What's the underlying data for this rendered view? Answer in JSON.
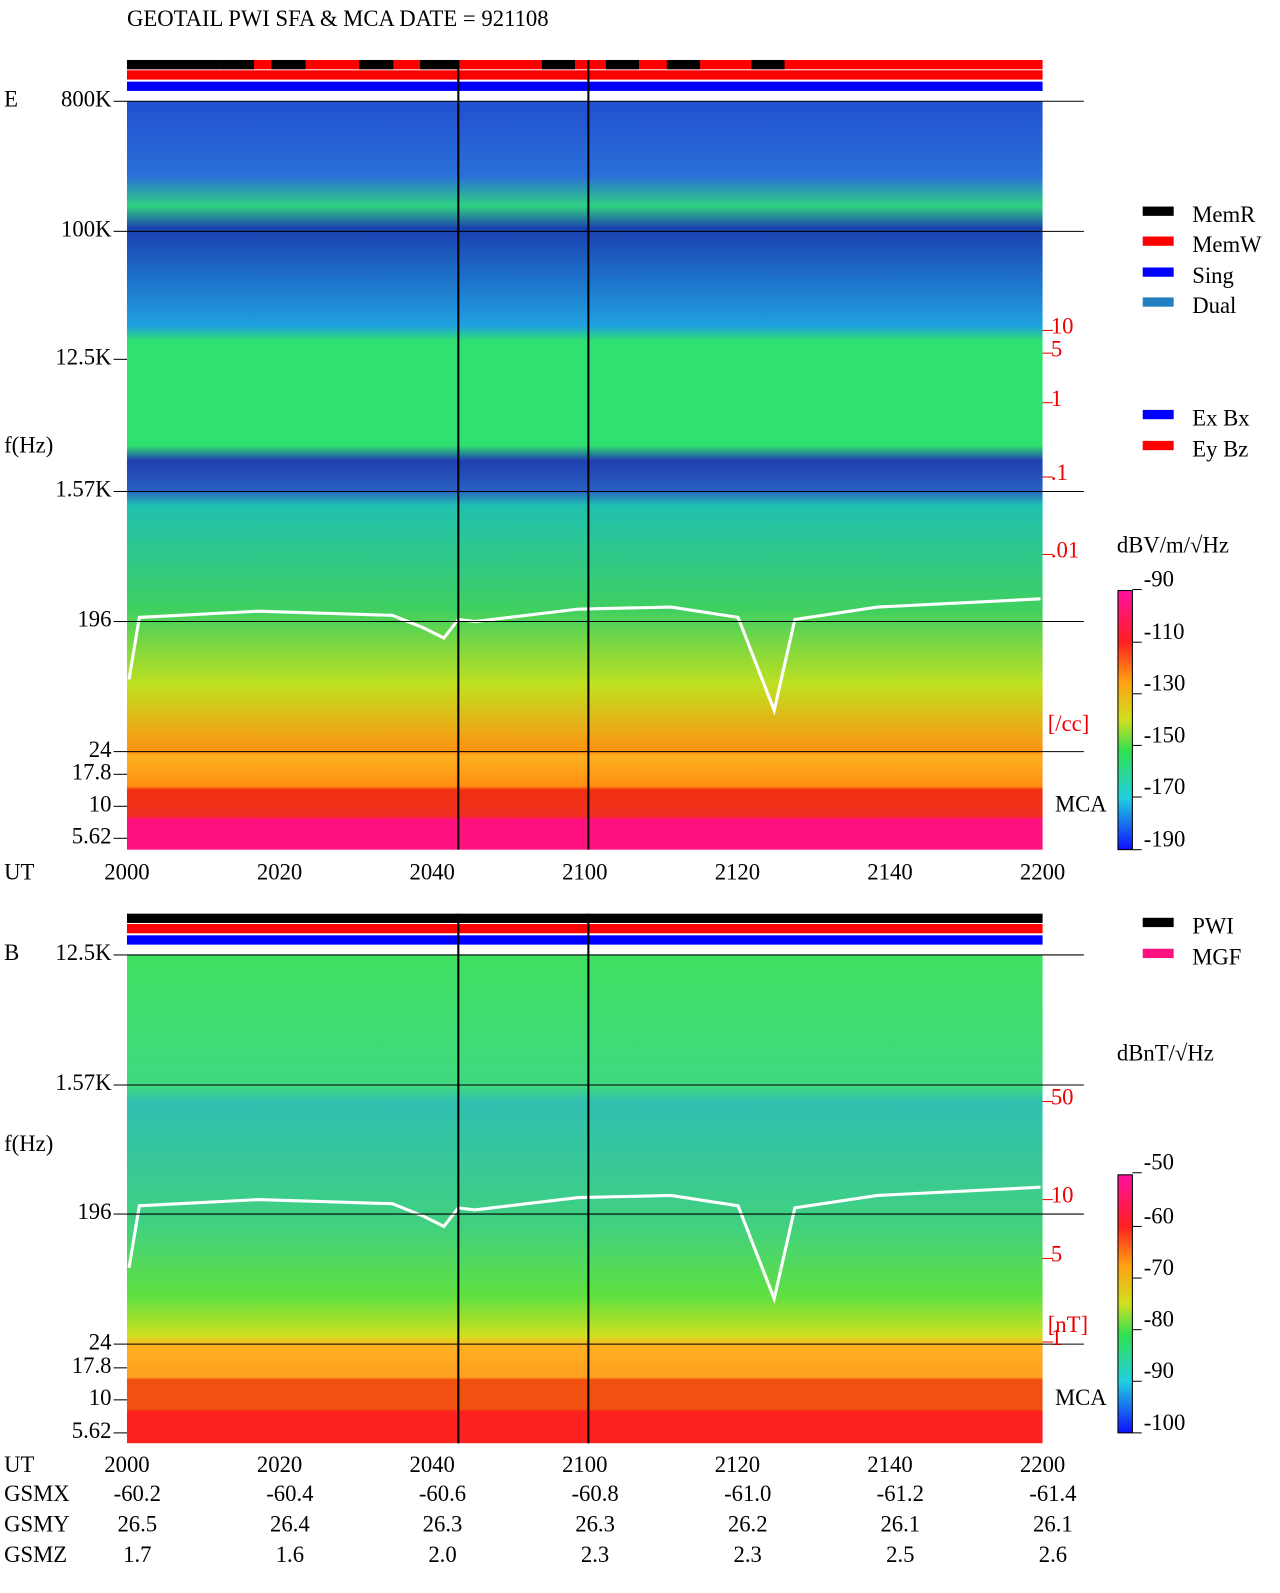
{
  "title": "GEOTAIL  PWI SFA & MCA   DATE = 921108",
  "panels": [
    {
      "label": "E",
      "y_axis_label": "f(Hz)",
      "freq_ticks": [
        "800K",
        "100K",
        "12.5K",
        "1.57K",
        "196",
        "24",
        "17.8",
        "10",
        "5.62"
      ],
      "density_ticks": [
        "10",
        "5",
        "1",
        ".1",
        ".01"
      ],
      "density_unit": "[/cc]",
      "mca_label": "MCA",
      "x_axis_label": "UT",
      "time_ticks": [
        "2000",
        "2020",
        "2040",
        "2100",
        "2120",
        "2140",
        "2200"
      ],
      "colorbar_unit": "dBV/m/√Hz",
      "colorbar_ticks": [
        "-90",
        "-110",
        "-130",
        "-150",
        "-170",
        "-190"
      ],
      "legend": [
        {
          "name": "MemR",
          "color": "#000000"
        },
        {
          "name": "MemW",
          "color": "#ff0000"
        },
        {
          "name": "Sing",
          "color": "#0000ff"
        },
        {
          "name": "Dual",
          "color": "#2080c0"
        }
      ],
      "legend2": [
        {
          "name": "Ex Bx",
          "color": "#0000ff"
        },
        {
          "name": "Ey Bz",
          "color": "#ff0000"
        }
      ]
    },
    {
      "label": "B",
      "y_axis_label": "f(Hz)",
      "freq_ticks": [
        "12.5K",
        "1.57K",
        "196",
        "24",
        "17.8",
        "10",
        "5.62"
      ],
      "density_ticks": [
        "50",
        "10",
        "5",
        "1"
      ],
      "density_unit": "[nT]",
      "mca_label": "MCA",
      "x_axis_label": "UT",
      "time_ticks": [
        "2000",
        "2020",
        "2040",
        "2100",
        "2120",
        "2140",
        "2200"
      ],
      "colorbar_unit": "dBnT/√Hz",
      "colorbar_ticks": [
        "-50",
        "-60",
        "-70",
        "-80",
        "-90",
        "-100"
      ],
      "legend": [
        {
          "name": "PWI",
          "color": "#000000"
        },
        {
          "name": "MGF",
          "color": "#ff1080"
        }
      ]
    }
  ],
  "orbit": {
    "rows": [
      {
        "label": "GSMX",
        "values": [
          "-60.2",
          "-60.4",
          "-60.6",
          "-60.8",
          "-61.0",
          "-61.2",
          "-61.4"
        ]
      },
      {
        "label": "GSMY",
        "values": [
          "26.5",
          "26.4",
          "26.3",
          "26.3",
          "26.2",
          "26.1",
          "26.1"
        ]
      },
      {
        "label": "GSMZ",
        "values": [
          "1.7",
          "1.6",
          "2.0",
          "2.3",
          "2.3",
          "2.5",
          "2.6"
        ]
      }
    ]
  }
}
